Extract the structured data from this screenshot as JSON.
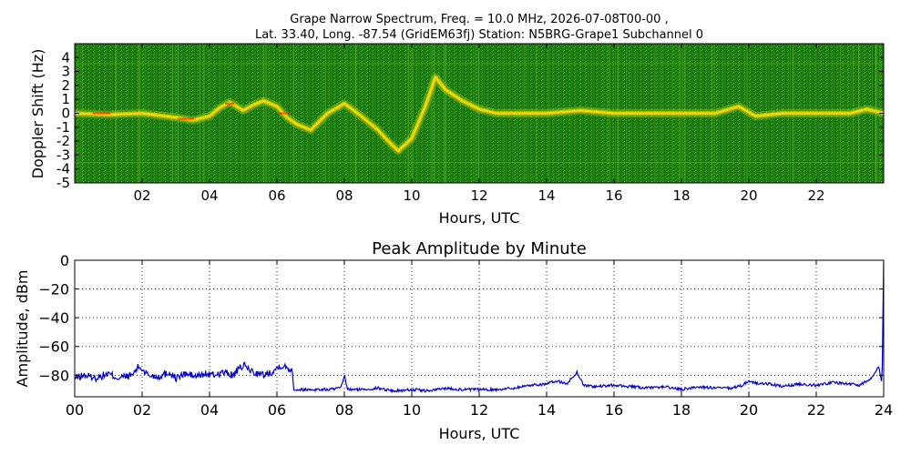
{
  "figure": {
    "title_line1": "Grape Narrow Spectrum, Freq. = 10.0 MHz, 2026-07-08T00-00 ,",
    "title_line2": "Lat.  33.40, Long. -87.54 (GridEM63fj) Station: N5BRG-Grape1 Subchannel 0"
  },
  "chart_data": [
    {
      "type": "heatmap",
      "title": "Grape Narrow Spectrum, Freq. = 10.0 MHz, 2026-07-08T00-00 , Lat.  33.40, Long. -87.54 (GridEM63fj) Station: N5BRG-Grape1 Subchannel 0",
      "xlabel": "Hours, UTC",
      "ylabel": "Doppler Shift (Hz)",
      "xlim": [
        0,
        24
      ],
      "ylim": [
        -5,
        5
      ],
      "x_ticks": [
        2,
        4,
        6,
        8,
        10,
        12,
        14,
        16,
        18,
        20,
        22
      ],
      "x_tick_labels": [
        "02",
        "04",
        "06",
        "08",
        "10",
        "12",
        "14",
        "16",
        "18",
        "20",
        "22"
      ],
      "y_ticks": [
        4,
        3,
        2,
        1,
        0,
        -1,
        -2,
        -3,
        -4,
        -5
      ],
      "y_tick_labels": [
        "4",
        "3",
        "2",
        "1",
        "0",
        "-1",
        "-2",
        "-3",
        "-4",
        "-5"
      ],
      "colors": {
        "background": "#1e7a12",
        "low": "#2f9a18",
        "mid": "#c8d80a",
        "high": "#ffd400",
        "peak": "#ff2a00"
      },
      "trace": {
        "x": [
          0,
          1,
          2,
          3,
          3.5,
          4,
          4.3,
          4.6,
          5,
          5.3,
          5.6,
          6,
          6.3,
          6.6,
          7,
          7.5,
          8,
          8.5,
          9,
          9.3,
          9.6,
          10,
          10.4,
          10.7,
          11,
          11.5,
          12,
          12.5,
          13,
          14,
          15,
          16,
          17,
          18,
          19,
          19.7,
          20.2,
          21,
          22,
          23,
          23.5,
          24
        ],
        "y": [
          0,
          -0.1,
          0,
          -0.3,
          -0.5,
          -0.2,
          0.4,
          0.8,
          0.2,
          0.6,
          0.9,
          0.5,
          -0.3,
          -0.8,
          -1.2,
          0,
          0.7,
          -0.2,
          -1.2,
          -2.0,
          -2.7,
          -1.8,
          0.5,
          2.6,
          1.7,
          0.9,
          0.3,
          0,
          0,
          0,
          0.2,
          0,
          0,
          0,
          0,
          0.5,
          -0.2,
          0,
          0,
          0,
          0.3,
          0
        ]
      }
    },
    {
      "type": "line",
      "title": "Peak Amplitude by Minute",
      "xlabel": "Hours, UTC",
      "ylabel": "Amplitude, dBm",
      "xlim": [
        0,
        24
      ],
      "ylim": [
        -95,
        0
      ],
      "grid": true,
      "x_ticks": [
        0,
        2,
        4,
        6,
        8,
        10,
        12,
        14,
        16,
        18,
        20,
        22,
        24
      ],
      "x_tick_labels": [
        "00",
        "02",
        "04",
        "06",
        "08",
        "10",
        "12",
        "14",
        "16",
        "18",
        "20",
        "22",
        "24"
      ],
      "y_ticks": [
        0,
        -20,
        -40,
        -60,
        -80
      ],
      "y_tick_labels": [
        "0",
        "−20",
        "−40",
        "−60",
        "−80"
      ],
      "line_color": "#0000cc",
      "series": [
        {
          "x": [
            0,
            0.3,
            0.6,
            1,
            1.3,
            1.7,
            1.9,
            2.2,
            2.5,
            2.8,
            3,
            3.3,
            3.6,
            3.9,
            4.1,
            4.4,
            4.7,
            5,
            5.3,
            5.6,
            5.9,
            6.1,
            6.3,
            6.45,
            6.5,
            7,
            7.5,
            7.9,
            8.0,
            8.1,
            8.5,
            9,
            9.5,
            10,
            10.5,
            11,
            11.5,
            12,
            12.5,
            13,
            13.5,
            14,
            14.3,
            14.6,
            14.9,
            15.1,
            15.5,
            16,
            16.5,
            17,
            17.5,
            18,
            18.5,
            19,
            19.5,
            19.8,
            20,
            20.3,
            20.6,
            21,
            21.5,
            22,
            22.5,
            23,
            23.3,
            23.5,
            23.7,
            23.85,
            23.95,
            24
          ],
          "y": [
            -82,
            -80,
            -82,
            -79,
            -82,
            -80,
            -74,
            -80,
            -81,
            -78,
            -82,
            -79,
            -81,
            -79,
            -80,
            -78,
            -80,
            -73,
            -78,
            -80,
            -77,
            -73,
            -75,
            -76,
            -90,
            -90,
            -90,
            -89,
            -80,
            -90,
            -90,
            -89,
            -91,
            -90,
            -91,
            -89,
            -90,
            -90,
            -90,
            -89,
            -87,
            -86,
            -84,
            -86,
            -78,
            -87,
            -88,
            -87,
            -88,
            -89,
            -88,
            -90,
            -88,
            -89,
            -89,
            -87,
            -84,
            -86,
            -86,
            -88,
            -86,
            -87,
            -85,
            -86,
            -87,
            -84,
            -80,
            -74,
            -86,
            -1
          ]
        }
      ]
    }
  ]
}
